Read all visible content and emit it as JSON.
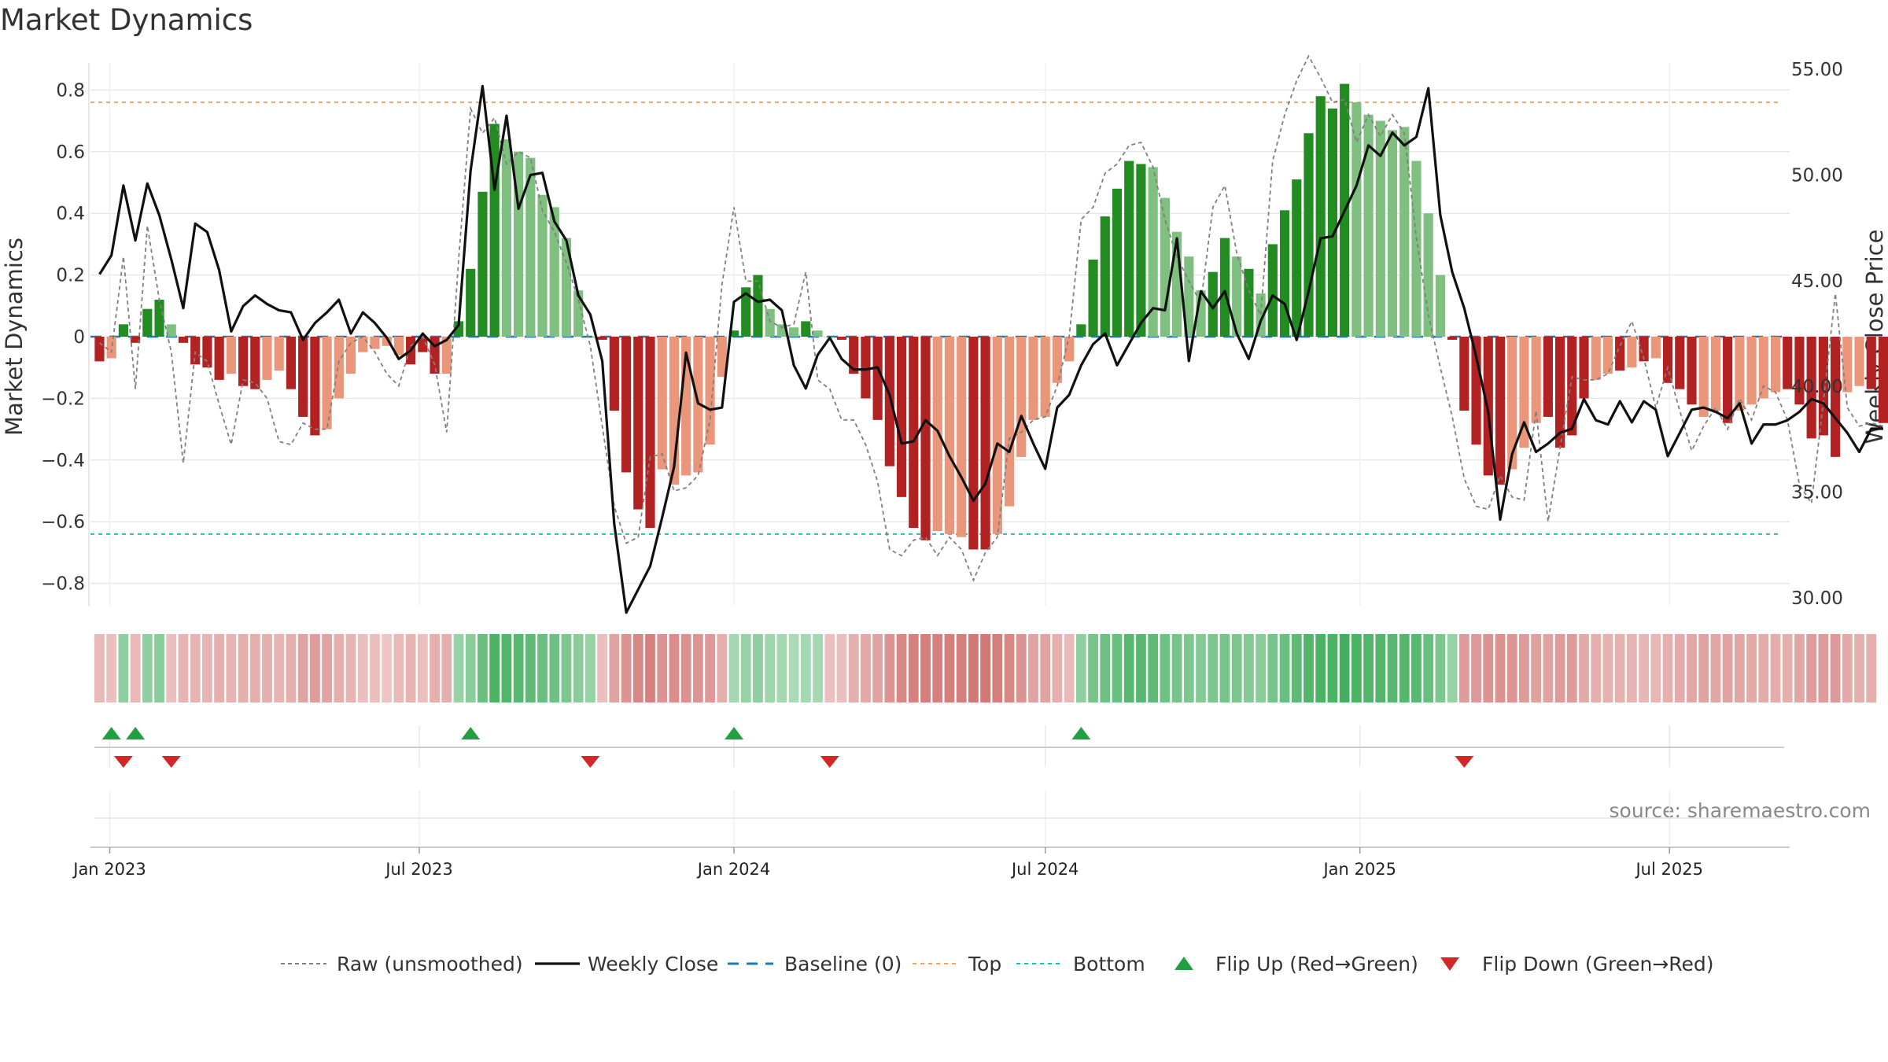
{
  "chart_data": {
    "type": "bar",
    "title": "Market Dynamics",
    "ylabel_left": "Market Dynamics",
    "ylabel_right": "Weekly Close Price",
    "source": "source: sharemaestro.com",
    "x_tick_labels": [
      "Jan 2023",
      "Jul 2023",
      "Jan 2024",
      "Jul 2024",
      "Jan 2025",
      "Jul 2025"
    ],
    "x_tick_dates": [
      "2023-01-01",
      "2023-07-01",
      "2024-01-01",
      "2024-07-01",
      "2025-01-01",
      "2025-07-01"
    ],
    "start_date": "2022-12-26",
    "week_step_days": 7,
    "y_left_ticks": [
      "0.8",
      "0.6",
      "0.4",
      "0.2",
      "0",
      "−0.2",
      "−0.4",
      "−0.6",
      "−0.8"
    ],
    "y_left_tick_values": [
      0.8,
      0.6,
      0.4,
      0.2,
      0,
      -0.2,
      -0.4,
      -0.6,
      -0.8
    ],
    "y_right_ticks": [
      "55.00",
      "50.00",
      "45.00",
      "40.00",
      "35.00",
      "30.00"
    ],
    "y_right_tick_values": [
      55,
      50,
      45,
      40,
      35,
      30
    ],
    "ylim_left": [
      -0.88,
      0.9
    ],
    "ylim_right": [
      30,
      55
    ],
    "top_line": 0.76,
    "bottom_line": -0.64,
    "baseline": 0,
    "colors": {
      "strong_green": "#228b22",
      "light_green": "#7fbf7f",
      "strong_red": "#b22222",
      "light_red": "#e9967a",
      "close_line": "#111111",
      "raw_line": "#808080",
      "baseline": "#1f77b4",
      "top": "#f4a460",
      "bottom": "#17becf",
      "flip_up": "#22a040",
      "flip_down": "#d62728"
    },
    "series": [
      {
        "name": "Market Dynamics",
        "values": [
          -0.08,
          -0.07,
          0.04,
          -0.02,
          0.09,
          0.12,
          0.04,
          -0.02,
          -0.09,
          -0.1,
          -0.14,
          -0.12,
          -0.16,
          -0.17,
          -0.14,
          -0.11,
          -0.17,
          -0.26,
          -0.32,
          -0.3,
          -0.2,
          -0.12,
          -0.05,
          -0.04,
          -0.03,
          -0.06,
          -0.09,
          -0.05,
          -0.12,
          -0.12,
          0.05,
          0.22,
          0.47,
          0.69,
          0.64,
          0.6,
          0.58,
          0.46,
          0.42,
          0.32,
          0.15,
          0.0,
          -0.01,
          -0.24,
          -0.44,
          -0.56,
          -0.62,
          -0.43,
          -0.48,
          -0.45,
          -0.44,
          -0.35,
          -0.13,
          0.02,
          0.16,
          0.2,
          0.09,
          0.04,
          0.03,
          0.05,
          0.02,
          -0.0,
          -0.01,
          -0.12,
          -0.2,
          -0.27,
          -0.42,
          -0.52,
          -0.62,
          -0.66,
          -0.63,
          -0.64,
          -0.65,
          -0.69,
          -0.69,
          -0.64,
          -0.55,
          -0.39,
          -0.27,
          -0.26,
          -0.15,
          -0.08,
          0.04,
          0.25,
          0.39,
          0.48,
          0.57,
          0.56,
          0.55,
          0.45,
          0.34,
          0.26,
          0.15,
          0.21,
          0.32,
          0.26,
          0.22,
          0.14,
          0.3,
          0.41,
          0.51,
          0.66,
          0.78,
          0.74,
          0.82,
          0.76,
          0.72,
          0.7,
          0.67,
          0.68,
          0.57,
          0.4,
          0.2,
          -0.01,
          -0.24,
          -0.35,
          -0.45,
          -0.48,
          -0.43,
          -0.36,
          -0.28,
          -0.26,
          -0.36,
          -0.32,
          -0.2,
          -0.14,
          -0.12,
          -0.11,
          -0.1,
          -0.08,
          -0.07,
          -0.15,
          -0.17,
          -0.22,
          -0.26,
          -0.24,
          -0.28,
          -0.24,
          -0.22,
          -0.2,
          -0.18,
          -0.17,
          -0.22,
          -0.33,
          -0.32,
          -0.39,
          -0.18,
          -0.16,
          -0.17,
          -0.28
        ],
        "strength": [
          "s",
          "l",
          "s",
          "s",
          "s",
          "s",
          "l",
          "s",
          "s",
          "s",
          "s",
          "l",
          "s",
          "s",
          "l",
          "l",
          "s",
          "s",
          "s",
          "l",
          "l",
          "l",
          "l",
          "l",
          "l",
          "l",
          "s",
          "s",
          "s",
          "l",
          "s",
          "s",
          "s",
          "s",
          "l",
          "l",
          "l",
          "l",
          "l",
          "l",
          "l",
          "s",
          "s",
          "s",
          "s",
          "s",
          "s",
          "l",
          "l",
          "l",
          "l",
          "l",
          "l",
          "s",
          "s",
          "s",
          "l",
          "l",
          "l",
          "s",
          "l",
          "l",
          "s",
          "s",
          "s",
          "s",
          "s",
          "s",
          "s",
          "s",
          "l",
          "l",
          "l",
          "s",
          "s",
          "l",
          "l",
          "l",
          "l",
          "l",
          "l",
          "l",
          "s",
          "s",
          "s",
          "s",
          "s",
          "s",
          "l",
          "l",
          "l",
          "l",
          "l",
          "s",
          "s",
          "l",
          "s",
          "l",
          "s",
          "s",
          "s",
          "s",
          "s",
          "s",
          "s",
          "l",
          "l",
          "l",
          "l",
          "l",
          "l",
          "l",
          "l",
          "s",
          "s",
          "s",
          "s",
          "s",
          "l",
          "l",
          "l",
          "s",
          "s",
          "s",
          "s",
          "l",
          "l",
          "s",
          "l",
          "s",
          "l",
          "s",
          "s",
          "s",
          "l",
          "l",
          "s",
          "l",
          "l",
          "l",
          "l",
          "s",
          "s",
          "s",
          "s",
          "s",
          "l",
          "l",
          "s",
          "s"
        ]
      },
      {
        "name": "Raw (unsmoothed)",
        "values": [
          -0.02,
          -0.05,
          0.26,
          -0.17,
          0.36,
          0.12,
          -0.05,
          -0.41,
          -0.05,
          -0.08,
          -0.22,
          -0.35,
          -0.14,
          -0.15,
          -0.2,
          -0.34,
          -0.35,
          -0.28,
          -0.3,
          -0.3,
          -0.08,
          -0.02,
          0.0,
          -0.05,
          -0.12,
          -0.16,
          -0.03,
          -0.0,
          -0.09,
          -0.31,
          0.25,
          0.74,
          0.66,
          0.71,
          0.56,
          0.6,
          0.58,
          0.41,
          0.34,
          0.24,
          0.12,
          -0.03,
          -0.29,
          -0.55,
          -0.67,
          -0.65,
          -0.39,
          -0.38,
          -0.5,
          -0.49,
          -0.45,
          -0.27,
          0.17,
          0.42,
          0.18,
          0.18,
          0.05,
          0.03,
          0.04,
          0.21,
          -0.14,
          -0.17,
          -0.27,
          -0.27,
          -0.35,
          -0.47,
          -0.69,
          -0.71,
          -0.66,
          -0.65,
          -0.71,
          -0.65,
          -0.69,
          -0.79,
          -0.7,
          -0.65,
          -0.33,
          -0.31,
          -0.27,
          -0.26,
          -0.16,
          0.0,
          0.38,
          0.42,
          0.53,
          0.56,
          0.62,
          0.63,
          0.55,
          0.38,
          0.26,
          0.18,
          0.11,
          0.42,
          0.49,
          0.27,
          0.15,
          0.07,
          0.57,
          0.72,
          0.83,
          0.91,
          0.84,
          0.76,
          0.77,
          0.63,
          0.72,
          0.65,
          0.72,
          0.66,
          0.32,
          0.07,
          -0.1,
          -0.26,
          -0.46,
          -0.55,
          -0.56,
          -0.45,
          -0.52,
          -0.53,
          -0.24,
          -0.6,
          -0.36,
          -0.13,
          -0.14,
          -0.14,
          -0.12,
          -0.03,
          0.05,
          -0.07,
          -0.23,
          -0.1,
          -0.24,
          -0.37,
          -0.29,
          -0.23,
          -0.3,
          -0.2,
          -0.27,
          -0.16,
          -0.18,
          -0.27,
          -0.48,
          -0.54,
          -0.21,
          0.14,
          -0.23,
          -0.29,
          -0.28,
          -0.29
        ]
      },
      {
        "name": "Weekly Close",
        "values": [
          45.3,
          46.2,
          49.5,
          46.9,
          49.6,
          48.1,
          46.0,
          43.7,
          47.7,
          47.3,
          45.5,
          42.6,
          43.8,
          44.3,
          43.9,
          43.6,
          43.5,
          42.2,
          43.0,
          43.5,
          44.1,
          42.5,
          43.5,
          43.0,
          42.3,
          41.3,
          41.7,
          42.5,
          41.9,
          42.2,
          42.9,
          50.2,
          54.2,
          49.3,
          52.8,
          48.4,
          50.0,
          50.1,
          47.8,
          46.9,
          44.3,
          43.4,
          41.2,
          33.5,
          29.3,
          30.4,
          31.5,
          33.8,
          36.2,
          41.6,
          39.2,
          38.9,
          39.0,
          44.0,
          44.4,
          44.0,
          44.1,
          43.6,
          41.0,
          39.9,
          41.5,
          42.3,
          41.3,
          40.8,
          40.8,
          40.9,
          39.6,
          37.3,
          37.4,
          38.4,
          37.9,
          36.7,
          35.7,
          34.6,
          35.4,
          37.3,
          36.9,
          38.6,
          37.3,
          36.1,
          39.0,
          39.6,
          41.0,
          42.0,
          42.5,
          41.0,
          42.0,
          43.0,
          43.7,
          43.6,
          47.0,
          41.2,
          44.5,
          43.7,
          44.5,
          42.5,
          41.3,
          43.1,
          44.3,
          43.9,
          42.2,
          44.5,
          47.0,
          47.1,
          48.3,
          49.5,
          51.4,
          50.9,
          52.0,
          51.4,
          51.8,
          54.1,
          48.1,
          45.4,
          43.7,
          41.4,
          38.8,
          33.7,
          36.8,
          38.3,
          36.9,
          37.3,
          37.8,
          38.0,
          39.4,
          38.4,
          38.2,
          39.3,
          38.3,
          39.3,
          38.9,
          36.7,
          37.8,
          38.9,
          39.0,
          38.8,
          38.5,
          39.2,
          37.3,
          38.2,
          38.2,
          38.4,
          38.8,
          39.4,
          39.2,
          38.5,
          37.8,
          36.9,
          38.0,
          38.0
        ]
      }
    ],
    "regime_strip": [
      "r",
      "r",
      "g",
      "r",
      "g",
      "g",
      "r",
      "r",
      "r",
      "r",
      "r",
      "r",
      "r",
      "r",
      "r",
      "r",
      "r",
      "r",
      "r",
      "r",
      "r",
      "r",
      "r",
      "r",
      "r",
      "r",
      "r",
      "r",
      "r",
      "r",
      "g",
      "g",
      "g",
      "g",
      "g",
      "g",
      "g",
      "g",
      "g",
      "g",
      "g",
      "g",
      "r",
      "r",
      "r",
      "r",
      "r",
      "r",
      "r",
      "r",
      "r",
      "r",
      "r",
      "g",
      "g",
      "g",
      "g",
      "g",
      "g",
      "g",
      "g",
      "r",
      "r",
      "r",
      "r",
      "r",
      "r",
      "r",
      "r",
      "r",
      "r",
      "r",
      "r",
      "r",
      "r",
      "r",
      "r",
      "r",
      "r",
      "r",
      "r",
      "r",
      "g",
      "g",
      "g",
      "g",
      "g",
      "g",
      "g",
      "g",
      "g",
      "g",
      "g",
      "g",
      "g",
      "g",
      "g",
      "g",
      "g",
      "g",
      "g",
      "g",
      "g",
      "g",
      "g",
      "g",
      "g",
      "g",
      "g",
      "g",
      "g",
      "g",
      "g",
      "g",
      "r",
      "r",
      "r",
      "r",
      "r",
      "r",
      "r",
      "r",
      "r",
      "r",
      "r",
      "r",
      "r",
      "r",
      "r",
      "r",
      "r",
      "r",
      "r",
      "r",
      "r",
      "r",
      "r",
      "r",
      "r",
      "r",
      "r",
      "r",
      "r",
      "r",
      "r",
      "r",
      "r",
      "r",
      "r"
    ],
    "regime_intensity": [
      0.35,
      0.3,
      0.45,
      0.35,
      0.45,
      0.5,
      0.3,
      0.4,
      0.4,
      0.4,
      0.45,
      0.4,
      0.45,
      0.45,
      0.45,
      0.4,
      0.45,
      0.55,
      0.6,
      0.55,
      0.45,
      0.4,
      0.3,
      0.3,
      0.25,
      0.35,
      0.4,
      0.3,
      0.45,
      0.45,
      0.4,
      0.5,
      0.75,
      0.95,
      0.9,
      0.85,
      0.8,
      0.75,
      0.7,
      0.6,
      0.5,
      0.4,
      0.3,
      0.55,
      0.7,
      0.8,
      0.85,
      0.7,
      0.75,
      0.72,
      0.7,
      0.65,
      0.45,
      0.3,
      0.4,
      0.45,
      0.35,
      0.3,
      0.25,
      0.3,
      0.3,
      0.3,
      0.3,
      0.45,
      0.5,
      0.55,
      0.7,
      0.8,
      0.85,
      0.9,
      0.88,
      0.9,
      0.9,
      0.95,
      0.95,
      0.9,
      0.8,
      0.7,
      0.55,
      0.55,
      0.45,
      0.35,
      0.45,
      0.65,
      0.7,
      0.75,
      0.85,
      0.85,
      0.8,
      0.7,
      0.65,
      0.6,
      0.55,
      0.6,
      0.65,
      0.6,
      0.55,
      0.5,
      0.65,
      0.75,
      0.8,
      0.9,
      0.95,
      0.95,
      1.0,
      0.95,
      0.9,
      0.9,
      0.85,
      0.88,
      0.85,
      0.75,
      0.6,
      0.4,
      0.6,
      0.65,
      0.7,
      0.72,
      0.68,
      0.62,
      0.58,
      0.55,
      0.62,
      0.6,
      0.5,
      0.45,
      0.42,
      0.42,
      0.4,
      0.38,
      0.38,
      0.45,
      0.48,
      0.52,
      0.55,
      0.52,
      0.55,
      0.52,
      0.5,
      0.48,
      0.46,
      0.45,
      0.52,
      0.6,
      0.6,
      0.65,
      0.5,
      0.45,
      0.45,
      0.55
    ],
    "flip_up_weeks": [
      1,
      3,
      31,
      53,
      82
    ],
    "flip_down_weeks": [
      2,
      6,
      41,
      61,
      114
    ],
    "legend": [
      {
        "label": "Raw (unsmoothed)",
        "kind": "dashed-gray"
      },
      {
        "label": "Weekly Close",
        "kind": "solid-black"
      },
      {
        "label": "Baseline (0)",
        "kind": "dashed-blue"
      },
      {
        "label": "Top",
        "kind": "dotted-orange"
      },
      {
        "label": "Bottom",
        "kind": "dotted-cyan"
      },
      {
        "label": "Flip Up (Red→Green)",
        "kind": "triangle-up"
      },
      {
        "label": "Flip Down (Green→Red)",
        "kind": "triangle-down"
      }
    ]
  }
}
